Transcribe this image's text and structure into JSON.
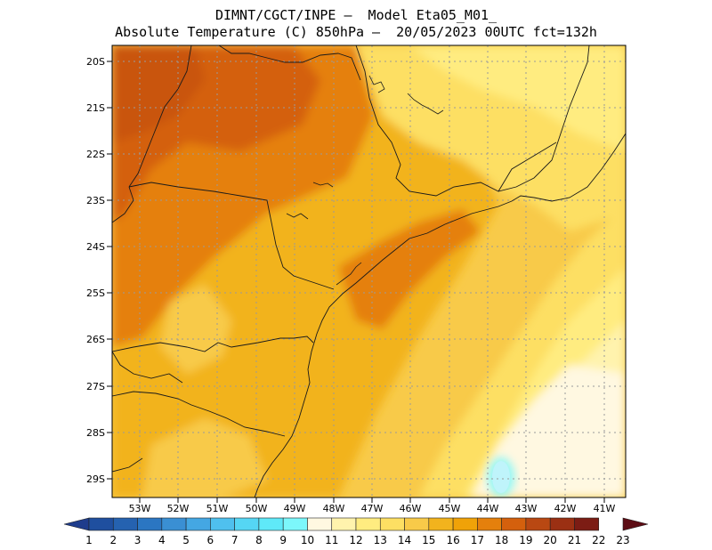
{
  "title": {
    "line1": "DIMNT/CGCT/INPE –  Model Eta05_M01_",
    "line2": "Absolute Temperature (C) 850hPa –  20/05/2023 00UTC fct=132h"
  },
  "map": {
    "region": "Southeastern / Southern Brazil",
    "lat_labels": [
      "20S",
      "21S",
      "22S",
      "23S",
      "24S",
      "25S",
      "26S",
      "27S",
      "28S",
      "29S"
    ],
    "lon_labels": [
      "53W",
      "52W",
      "51W",
      "50W",
      "49W",
      "48W",
      "47W",
      "46W",
      "45W",
      "44W",
      "43W",
      "42W",
      "41W"
    ]
  },
  "colorbar": {
    "labels": [
      "1",
      "2",
      "3",
      "4",
      "5",
      "6",
      "7",
      "8",
      "9",
      "10",
      "11",
      "12",
      "13",
      "14",
      "15",
      "16",
      "17",
      "18",
      "19",
      "20",
      "21",
      "22",
      "23"
    ],
    "colors": [
      "#1e3c8c",
      "#1f4f9f",
      "#2562b0",
      "#2b76c2",
      "#3a8fd3",
      "#44a7e3",
      "#4fc0ee",
      "#55d6f4",
      "#5fe9f8",
      "#7cf7fb",
      "#fff8e1",
      "#fff3ad",
      "#ffec80",
      "#fddf63",
      "#f8ca49",
      "#f2b31d",
      "#f0a208",
      "#e5800c",
      "#d4600d",
      "#b94812",
      "#9b3013",
      "#7c1c14",
      "#5d0c14"
    ]
  }
}
